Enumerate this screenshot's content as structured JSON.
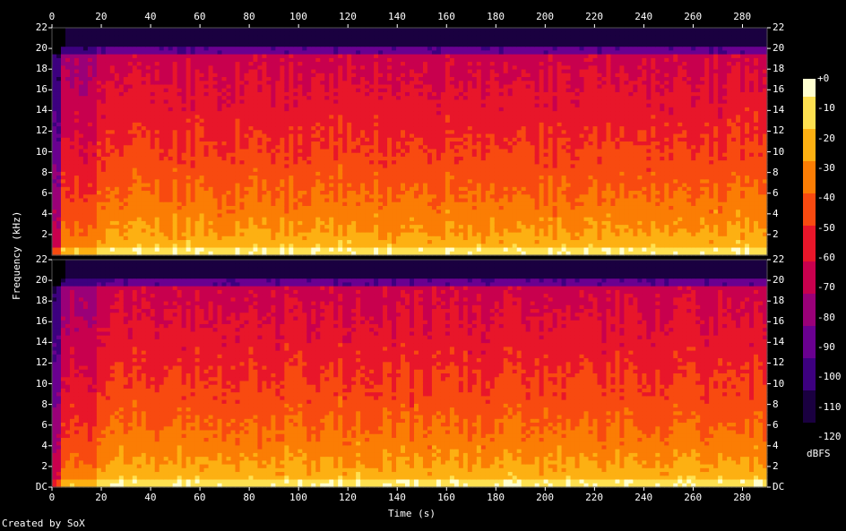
{
  "chart_data": {
    "type": "heatmap",
    "title": "",
    "xlabel": "Time (s)",
    "ylabel": "Frequency (kHz)",
    "credit": "Created by SoX",
    "colorbar_label": "dBFS",
    "x_ticks": [
      "0",
      "20",
      "40",
      "60",
      "80",
      "100",
      "120",
      "140",
      "160",
      "180",
      "200",
      "220",
      "240",
      "260",
      "280"
    ],
    "y_ticks_top": [
      "2",
      "4",
      "6",
      "8",
      "10",
      "12",
      "14",
      "16",
      "18",
      "20",
      "22"
    ],
    "y_ticks_bottom": [
      "DC",
      "2",
      "4",
      "6",
      "8",
      "10",
      "12",
      "14",
      "16",
      "18",
      "20",
      "22"
    ],
    "colorbar_ticks": [
      "+0",
      "-10",
      "-20",
      "-30",
      "-40",
      "-50",
      "-60",
      "-70",
      "-80",
      "-90",
      "-100",
      "-110",
      "-120"
    ],
    "xlim": [
      0,
      290
    ],
    "ylim": [
      0,
      22
    ],
    "clim": [
      -120,
      0
    ],
    "channels": [
      {
        "name": "",
        "cutoff_khz": 20,
        "low_band_db": -10,
        "mid_band_db": -40,
        "high_band_db": -65
      },
      {
        "name": "",
        "cutoff_khz": 20,
        "low_band_db": -10,
        "mid_band_db": -40,
        "high_band_db": -65
      }
    ],
    "colormap": [
      "#000000",
      "#1a0040",
      "#3d007f",
      "#6a0090",
      "#9a0078",
      "#c8004e",
      "#e8162a",
      "#f84a10",
      "#fb7d04",
      "#fdb012",
      "#fee050",
      "#ffffcf"
    ]
  }
}
